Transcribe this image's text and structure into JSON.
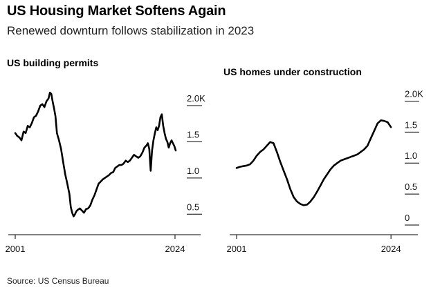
{
  "header": {
    "title": "US Housing Market Softens Again",
    "subtitle": "Renewed downturn follows stabilization in 2023"
  },
  "footer": {
    "source": "Source: US Census Bureau"
  },
  "colors": {
    "line": "#000000",
    "text": "#111111",
    "tick": "#000000"
  },
  "chart_data": [
    {
      "type": "line",
      "title": "US building permits",
      "xlabel": "",
      "ylabel": "",
      "xlim": [
        2001,
        2024.5
      ],
      "ylim": [
        0.35,
        2.2
      ],
      "x_ticks": [
        2001,
        2024
      ],
      "x_tick_labels": [
        "2001",
        "2024"
      ],
      "y_ticks": [
        2.0,
        1.5,
        1.0,
        0.5
      ],
      "y_tick_labels": [
        "2.0K",
        "1.5",
        "1.0",
        "0.5"
      ],
      "grid": false,
      "series": [
        {
          "x": [
            2001.0,
            2001.3,
            2001.6,
            2001.9,
            2002.2,
            2002.5,
            2002.8,
            2003.1,
            2003.4,
            2003.7,
            2004.0,
            2004.3,
            2004.6,
            2004.9,
            2005.2,
            2005.5,
            2005.8,
            2006.0,
            2006.2,
            2006.4,
            2006.6,
            2006.8,
            2007.0,
            2007.3,
            2007.6,
            2007.9,
            2008.2,
            2008.5,
            2008.8,
            2009.0,
            2009.2,
            2009.4,
            2009.6,
            2009.8,
            2010.0,
            2010.3,
            2010.6,
            2010.9,
            2011.2,
            2011.5,
            2011.8,
            2012.1,
            2012.4,
            2012.7,
            2013.0,
            2013.3,
            2013.6,
            2013.9,
            2014.2,
            2014.5,
            2014.8,
            2015.1,
            2015.4,
            2015.7,
            2016.0,
            2016.3,
            2016.6,
            2016.9,
            2017.2,
            2017.5,
            2017.8,
            2018.1,
            2018.4,
            2018.7,
            2019.0,
            2019.3,
            2019.6,
            2019.9,
            2020.1,
            2020.3,
            2020.5,
            2020.7,
            2020.9,
            2021.1,
            2021.3,
            2021.5,
            2021.7,
            2021.9,
            2022.1,
            2022.3,
            2022.5,
            2022.7,
            2022.9,
            2023.1,
            2023.3,
            2023.5,
            2023.7,
            2023.9,
            2024.1
          ],
          "y": [
            1.62,
            1.58,
            1.56,
            1.52,
            1.64,
            1.62,
            1.72,
            1.7,
            1.76,
            1.84,
            1.86,
            1.92,
            2.0,
            2.02,
            1.98,
            2.06,
            2.1,
            2.18,
            2.16,
            2.05,
            1.96,
            1.85,
            1.62,
            1.52,
            1.4,
            1.22,
            1.05,
            0.92,
            0.78,
            0.6,
            0.52,
            0.47,
            0.5,
            0.54,
            0.56,
            0.58,
            0.55,
            0.52,
            0.57,
            0.58,
            0.62,
            0.7,
            0.76,
            0.84,
            0.92,
            0.95,
            0.98,
            1.0,
            1.02,
            1.04,
            1.07,
            1.08,
            1.14,
            1.16,
            1.18,
            1.18,
            1.2,
            1.24,
            1.22,
            1.24,
            1.28,
            1.32,
            1.3,
            1.28,
            1.3,
            1.35,
            1.42,
            1.45,
            1.48,
            1.4,
            1.1,
            1.38,
            1.52,
            1.62,
            1.7,
            1.66,
            1.72,
            1.84,
            1.88,
            1.72,
            1.62,
            1.54,
            1.5,
            1.42,
            1.48,
            1.52,
            1.48,
            1.44,
            1.38
          ]
        }
      ]
    },
    {
      "type": "line",
      "title": "US homes under construction",
      "xlabel": "",
      "ylabel": "",
      "xlim": [
        2001,
        2024.5
      ],
      "ylim": [
        0,
        2.05
      ],
      "x_ticks": [
        2001,
        2024
      ],
      "x_tick_labels": [
        "2001",
        "2024"
      ],
      "y_ticks": [
        2.0,
        1.5,
        1.0,
        0.5,
        0
      ],
      "y_tick_labels": [
        "2.0K",
        "1.5",
        "1.0",
        "0.5",
        "0"
      ],
      "grid": false,
      "series": [
        {
          "x": [
            2001.0,
            2001.5,
            2002.0,
            2002.5,
            2003.0,
            2003.5,
            2004.0,
            2004.5,
            2005.0,
            2005.5,
            2006.0,
            2006.5,
            2007.0,
            2007.5,
            2008.0,
            2008.5,
            2009.0,
            2009.5,
            2010.0,
            2010.5,
            2011.0,
            2011.5,
            2012.0,
            2012.5,
            2013.0,
            2013.5,
            2014.0,
            2014.5,
            2015.0,
            2015.5,
            2016.0,
            2016.5,
            2017.0,
            2017.5,
            2018.0,
            2018.5,
            2019.0,
            2019.5,
            2020.0,
            2020.5,
            2021.0,
            2021.5,
            2022.0,
            2022.5,
            2023.0,
            2023.5,
            2024.0
          ],
          "y": [
            0.92,
            0.94,
            0.95,
            0.96,
            0.98,
            1.04,
            1.12,
            1.18,
            1.22,
            1.28,
            1.34,
            1.32,
            1.18,
            1.02,
            0.88,
            0.74,
            0.58,
            0.45,
            0.38,
            0.34,
            0.32,
            0.33,
            0.38,
            0.45,
            0.54,
            0.64,
            0.74,
            0.82,
            0.9,
            0.96,
            1.0,
            1.04,
            1.06,
            1.08,
            1.1,
            1.12,
            1.14,
            1.18,
            1.22,
            1.28,
            1.4,
            1.52,
            1.64,
            1.69,
            1.68,
            1.66,
            1.58
          ]
        }
      ]
    }
  ]
}
